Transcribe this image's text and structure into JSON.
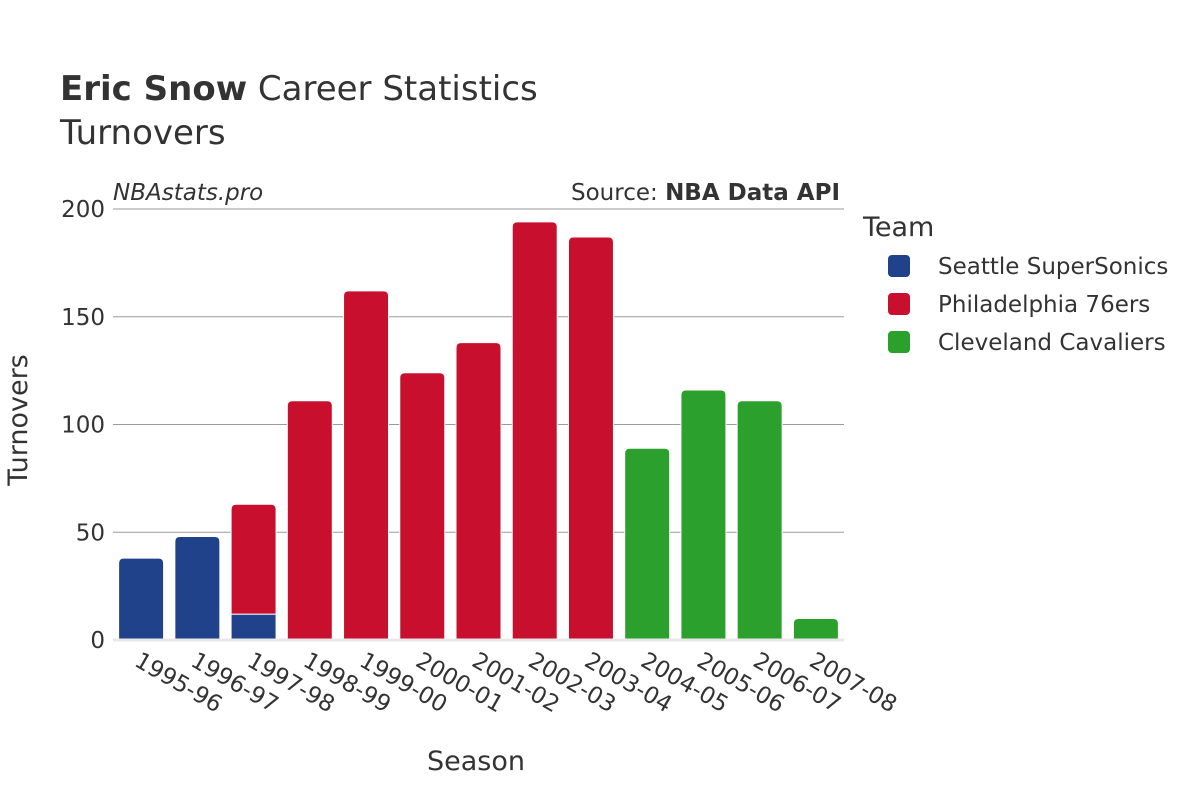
{
  "header": {
    "title_bold": "Eric Snow",
    "title_rest": " Career Statistics",
    "subtitle": "Turnovers",
    "watermark": "NBAstats.pro",
    "source_label": "Source: ",
    "source_value": "NBA Data API"
  },
  "legend": {
    "title": "Team"
  },
  "chart_data": {
    "type": "bar",
    "stacked": true,
    "xlabel": "Season",
    "ylabel": "Turnovers",
    "ylim": [
      0,
      200
    ],
    "yticks": [
      0,
      50,
      100,
      150,
      200
    ],
    "grid": true,
    "legend_position": "right",
    "categories": [
      "1995-96",
      "1996-97",
      "1997-98",
      "1998-99",
      "1999-00",
      "2000-01",
      "2001-02",
      "2002-03",
      "2003-04",
      "2004-05",
      "2005-06",
      "2006-07",
      "2007-08"
    ],
    "series": [
      {
        "name": "Seattle SuperSonics",
        "color": "#1f428a",
        "values": [
          38,
          48,
          12,
          0,
          0,
          0,
          0,
          0,
          0,
          0,
          0,
          0,
          0
        ]
      },
      {
        "name": "Philadelphia 76ers",
        "color": "#c8102e",
        "values": [
          0,
          0,
          51,
          111,
          162,
          124,
          138,
          194,
          187,
          0,
          0,
          0,
          0
        ]
      },
      {
        "name": "Cleveland Cavaliers",
        "color": "#2ca02c",
        "values": [
          0,
          0,
          0,
          0,
          0,
          0,
          0,
          0,
          0,
          89,
          116,
          111,
          10
        ]
      }
    ]
  }
}
